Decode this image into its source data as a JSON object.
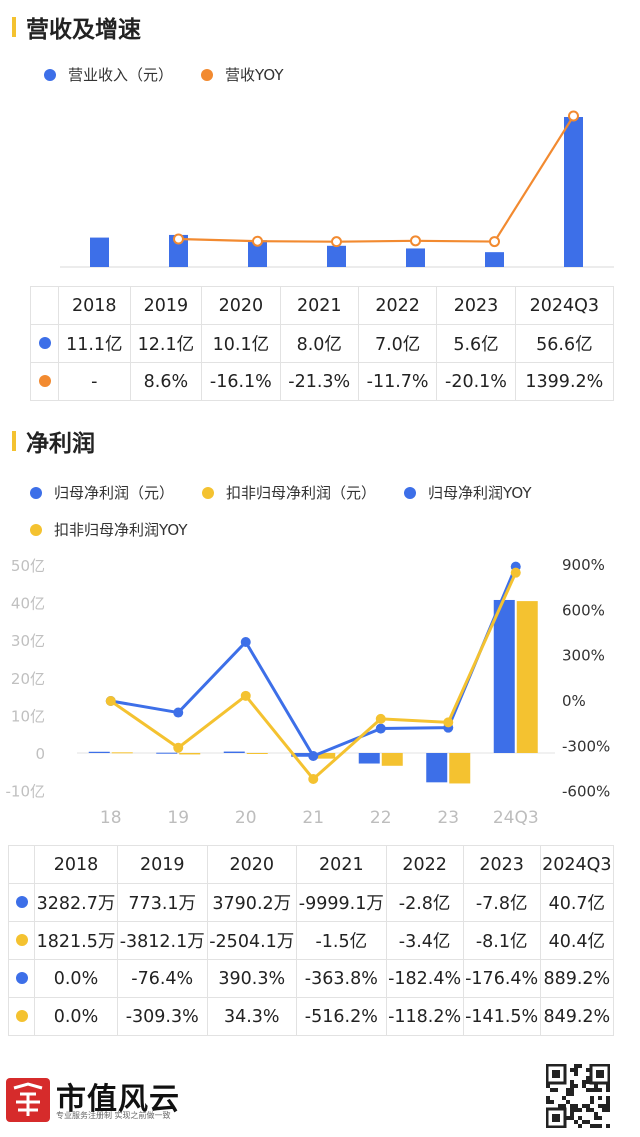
{
  "section1": {
    "title": "营收及增速",
    "legend": [
      {
        "label": "营业收入（元）",
        "color": "#3d6fe8"
      },
      {
        "label": "营收YOY",
        "color": "#f28a30"
      }
    ],
    "table": {
      "header": [
        "",
        "2018",
        "2019",
        "2020",
        "2021",
        "2022",
        "2023",
        "2024Q3"
      ],
      "rows": [
        {
          "color": "#3d6fe8",
          "cells": [
            "11.1亿",
            "12.1亿",
            "10.1亿",
            "8.0亿",
            "7.0亿",
            "5.6亿",
            "56.6亿"
          ]
        },
        {
          "color": "#f28a30",
          "cells": [
            "-",
            "8.6%",
            "-16.1%",
            "-21.3%",
            "-11.7%",
            "-20.1%",
            "1399.2%"
          ]
        }
      ]
    }
  },
  "section2": {
    "title": "净利润",
    "legend": [
      {
        "label": "归母净利润（元）",
        "color": "#3d6fe8"
      },
      {
        "label": "扣非归母净利润（元）",
        "color": "#f4c230"
      },
      {
        "label": "归母净利润YOY",
        "color": "#3d6fe8"
      },
      {
        "label": "扣非归母净利润YOY",
        "color": "#f4c230"
      }
    ],
    "table": {
      "header": [
        "",
        "2018",
        "2019",
        "2020",
        "2021",
        "2022",
        "2023",
        "2024Q3"
      ],
      "rows": [
        {
          "color": "#3d6fe8",
          "cells": [
            "3282.7万",
            "773.1万",
            "3790.2万",
            "-9999.1万",
            "-2.8亿",
            "-7.8亿",
            "40.7亿"
          ]
        },
        {
          "color": "#f4c230",
          "cells": [
            "1821.5万",
            "-3812.1万",
            "-2504.1万",
            "-1.5亿",
            "-3.4亿",
            "-8.1亿",
            "40.4亿"
          ]
        },
        {
          "color": "#3d6fe8",
          "cells": [
            "0.0%",
            "-76.4%",
            "390.3%",
            "-363.8%",
            "-182.4%",
            "-176.4%",
            "889.2%"
          ]
        },
        {
          "color": "#f4c230",
          "cells": [
            "0.0%",
            "-309.3%",
            "34.3%",
            "-516.2%",
            "-118.2%",
            "-141.5%",
            "849.2%"
          ]
        }
      ]
    }
  },
  "chart_data": [
    {
      "type": "bar",
      "categories": [
        "2018",
        "2019",
        "2020",
        "2021",
        "2022",
        "2023",
        "2024Q3"
      ],
      "series": [
        {
          "name": "营业收入（元）",
          "type": "bar",
          "unit": "亿",
          "color": "#3d6fe8",
          "values": [
            11.1,
            12.1,
            10.1,
            8.0,
            7.0,
            5.6,
            56.6
          ]
        },
        {
          "name": "营收YOY",
          "type": "line",
          "unit": "%",
          "color": "#f28a30",
          "values": [
            null,
            8.6,
            -16.1,
            -21.3,
            -11.7,
            -20.1,
            1399.2
          ]
        }
      ]
    },
    {
      "type": "bar",
      "categories": [
        "18",
        "19",
        "20",
        "21",
        "22",
        "23",
        "24Q3"
      ],
      "left_axis": {
        "ticks": [
          "50亿",
          "40亿",
          "30亿",
          "20亿",
          "10亿",
          "0",
          "-10亿"
        ],
        "ylim": [
          -10,
          50
        ]
      },
      "right_axis": {
        "ticks": [
          "900%",
          "600%",
          "300%",
          "0%",
          "-300%",
          "-600%"
        ],
        "ylim": [
          -600,
          900
        ]
      },
      "series": [
        {
          "name": "归母净利润（元）",
          "type": "bar",
          "unit": "亿",
          "color": "#3d6fe8",
          "values": [
            0.328,
            0.077,
            0.379,
            -1.0,
            -2.8,
            -7.8,
            40.7
          ]
        },
        {
          "name": "扣非归母净利润（元）",
          "type": "bar",
          "unit": "亿",
          "color": "#f4c230",
          "values": [
            0.182,
            -0.381,
            -0.25,
            -1.5,
            -3.4,
            -8.1,
            40.4
          ]
        },
        {
          "name": "归母净利润YOY",
          "type": "line",
          "unit": "%",
          "color": "#3d6fe8",
          "values": [
            0.0,
            -76.4,
            390.3,
            -363.8,
            -182.4,
            -176.4,
            889.2
          ]
        },
        {
          "name": "扣非归母净利润YOY",
          "type": "line",
          "unit": "%",
          "color": "#f4c230",
          "values": [
            0.0,
            -309.3,
            34.3,
            -516.2,
            -118.2,
            -141.5,
            849.2
          ]
        }
      ]
    }
  ],
  "footer": {
    "brand": "市值风云",
    "slogan": "专业服务注册制 实现之前做一致"
  }
}
